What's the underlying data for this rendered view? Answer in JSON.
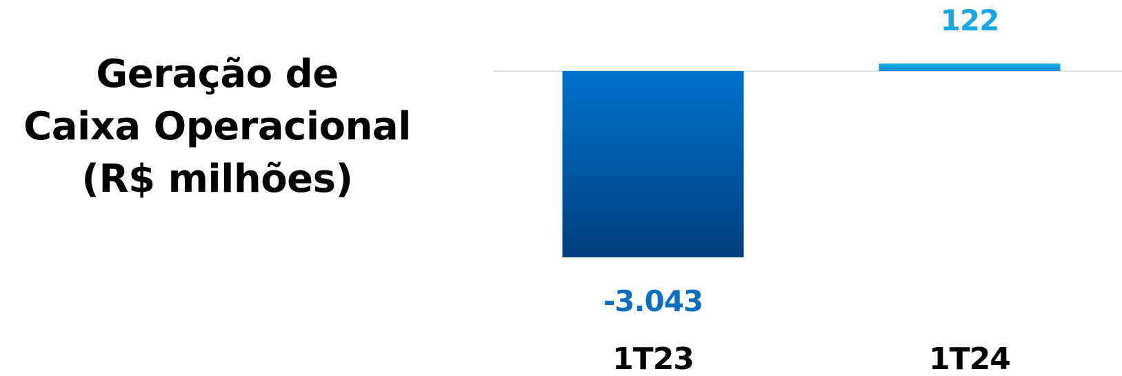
{
  "title": {
    "lines": [
      "Geração de",
      "Caixa Operacional",
      "(R$ milhões)"
    ]
  },
  "chart_data": {
    "type": "bar",
    "categories": [
      "1T23",
      "1T24"
    ],
    "values": [
      -3043,
      122
    ],
    "value_labels": [
      "-3.043",
      "122"
    ],
    "colors": {
      "negative_bar_top": "#0072CE",
      "negative_bar_bottom": "#003F7D",
      "negative_label": "#0A6FC2",
      "positive_bar_top": "#1AAAE8",
      "positive_bar_bottom": "#0E8FD3",
      "positive_label": "#18A7E6",
      "baseline": "#D9D9D9"
    },
    "ylim": [
      -3043,
      650
    ],
    "grid": false,
    "legend": "none"
  }
}
